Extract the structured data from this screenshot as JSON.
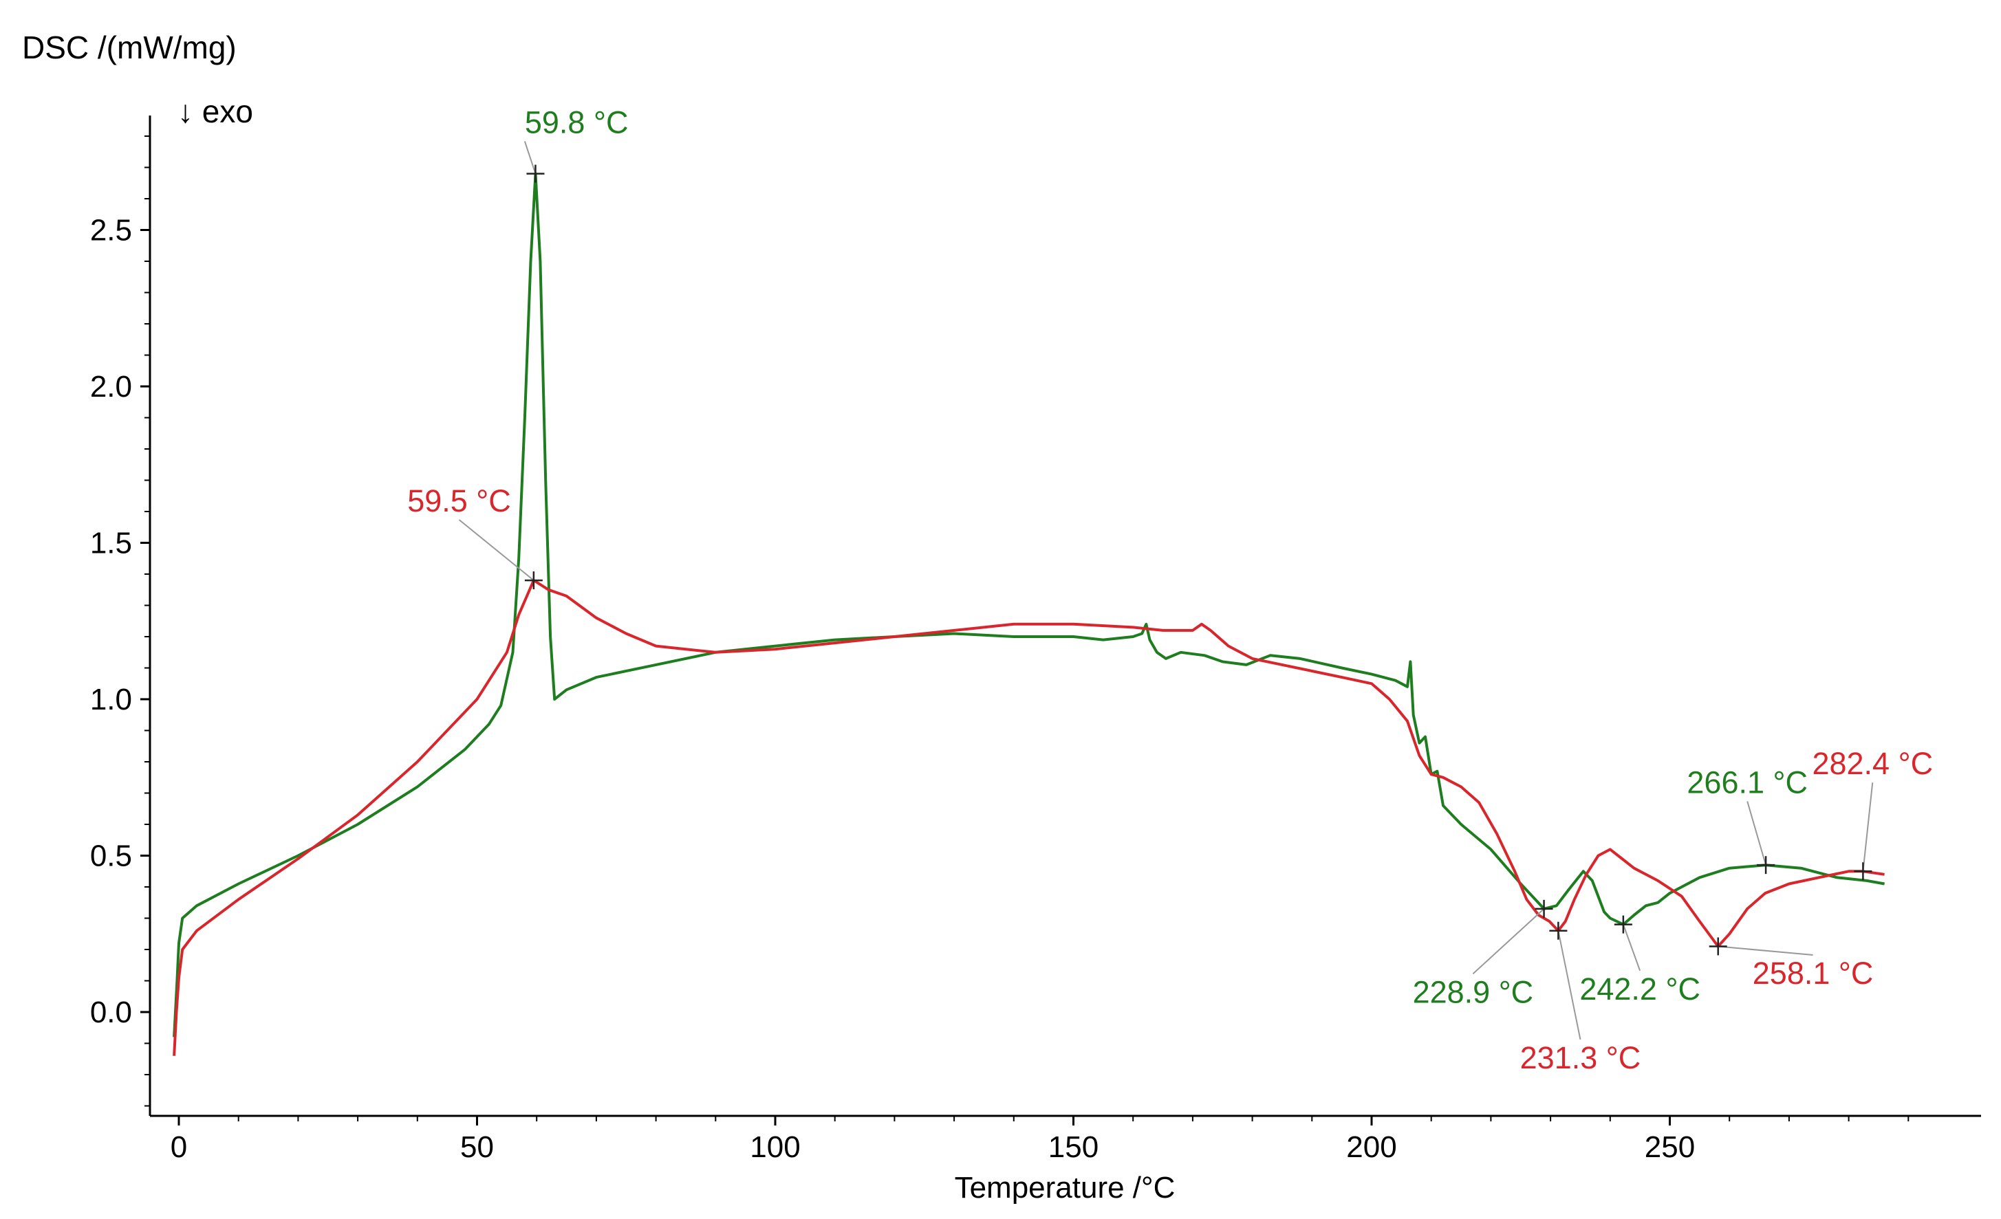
{
  "chart_data": {
    "type": "line",
    "title": "",
    "ylabel": "DSC /(mW/mg)",
    "exo_label": "↓ exo",
    "xlabel": "Temperature /°C",
    "xlim": [
      -2,
      300
    ],
    "ylim": [
      -0.32,
      2.88
    ],
    "x_ticks": [
      0,
      50,
      100,
      150,
      200,
      250
    ],
    "x_tick_labels": [
      "0",
      "50",
      "100",
      "150",
      "200",
      "250"
    ],
    "y_ticks": [
      0.0,
      0.5,
      1.0,
      1.5,
      2.0,
      2.5
    ],
    "y_tick_labels": [
      "0.0",
      "0.5",
      "1.0",
      "1.5",
      "2.0",
      "2.5"
    ],
    "colors": {
      "green": "#1e7d1e",
      "red": "#d9262c",
      "leader": "#999999"
    },
    "series": [
      {
        "name": "green",
        "color": "#1e7d1e",
        "points": [
          [
            -0.8,
            -0.08
          ],
          [
            -0.3,
            0.1
          ],
          [
            0,
            0.22
          ],
          [
            0.6,
            0.3
          ],
          [
            3,
            0.34
          ],
          [
            10,
            0.41
          ],
          [
            20,
            0.5
          ],
          [
            30,
            0.6
          ],
          [
            40,
            0.72
          ],
          [
            48,
            0.84
          ],
          [
            52,
            0.92
          ],
          [
            54,
            0.98
          ],
          [
            56,
            1.15
          ],
          [
            57,
            1.45
          ],
          [
            58,
            1.9
          ],
          [
            59,
            2.4
          ],
          [
            59.8,
            2.68
          ],
          [
            60.6,
            2.4
          ],
          [
            61.5,
            1.7
          ],
          [
            62.3,
            1.2
          ],
          [
            63,
            1.0
          ],
          [
            65,
            1.03
          ],
          [
            70,
            1.07
          ],
          [
            80,
            1.11
          ],
          [
            90,
            1.15
          ],
          [
            100,
            1.17
          ],
          [
            110,
            1.19
          ],
          [
            120,
            1.2
          ],
          [
            130,
            1.21
          ],
          [
            140,
            1.2
          ],
          [
            150,
            1.2
          ],
          [
            155,
            1.19
          ],
          [
            160,
            1.2
          ],
          [
            161.5,
            1.21
          ],
          [
            162.2,
            1.24
          ],
          [
            162.8,
            1.19
          ],
          [
            164,
            1.15
          ],
          [
            165.5,
            1.13
          ],
          [
            168,
            1.15
          ],
          [
            172,
            1.14
          ],
          [
            175,
            1.12
          ],
          [
            179,
            1.11
          ],
          [
            183,
            1.14
          ],
          [
            188,
            1.13
          ],
          [
            195,
            1.1
          ],
          [
            200,
            1.08
          ],
          [
            204,
            1.06
          ],
          [
            206,
            1.04
          ],
          [
            206.5,
            1.12
          ],
          [
            207,
            0.95
          ],
          [
            208,
            0.86
          ],
          [
            209,
            0.88
          ],
          [
            210,
            0.76
          ],
          [
            211,
            0.77
          ],
          [
            212,
            0.66
          ],
          [
            215,
            0.6
          ],
          [
            220,
            0.52
          ],
          [
            225,
            0.41
          ],
          [
            228.9,
            0.33
          ],
          [
            231,
            0.34
          ],
          [
            233,
            0.39
          ],
          [
            235.5,
            0.45
          ],
          [
            237,
            0.42
          ],
          [
            239,
            0.32
          ],
          [
            240,
            0.3
          ],
          [
            242.2,
            0.28
          ],
          [
            244,
            0.31
          ],
          [
            246,
            0.34
          ],
          [
            248,
            0.35
          ],
          [
            250,
            0.38
          ],
          [
            255,
            0.43
          ],
          [
            260,
            0.46
          ],
          [
            266.1,
            0.47
          ],
          [
            272,
            0.46
          ],
          [
            278,
            0.43
          ],
          [
            283,
            0.42
          ],
          [
            286,
            0.41
          ]
        ]
      },
      {
        "name": "red",
        "color": "#d9262c",
        "points": [
          [
            -0.8,
            -0.14
          ],
          [
            -0.4,
            0.0
          ],
          [
            0,
            0.11
          ],
          [
            0.6,
            0.2
          ],
          [
            3,
            0.26
          ],
          [
            10,
            0.36
          ],
          [
            20,
            0.49
          ],
          [
            30,
            0.63
          ],
          [
            40,
            0.8
          ],
          [
            50,
            1.0
          ],
          [
            55,
            1.15
          ],
          [
            57,
            1.27
          ],
          [
            59.5,
            1.38
          ],
          [
            62,
            1.35
          ],
          [
            65,
            1.33
          ],
          [
            70,
            1.26
          ],
          [
            75,
            1.21
          ],
          [
            80,
            1.17
          ],
          [
            90,
            1.15
          ],
          [
            100,
            1.16
          ],
          [
            110,
            1.18
          ],
          [
            120,
            1.2
          ],
          [
            130,
            1.22
          ],
          [
            140,
            1.24
          ],
          [
            150,
            1.24
          ],
          [
            160,
            1.23
          ],
          [
            165,
            1.22
          ],
          [
            170,
            1.22
          ],
          [
            171.5,
            1.24
          ],
          [
            173,
            1.22
          ],
          [
            176,
            1.17
          ],
          [
            180,
            1.13
          ],
          [
            185,
            1.11
          ],
          [
            190,
            1.09
          ],
          [
            195,
            1.07
          ],
          [
            200,
            1.05
          ],
          [
            203,
            1.0
          ],
          [
            206,
            0.93
          ],
          [
            208,
            0.82
          ],
          [
            210,
            0.76
          ],
          [
            212,
            0.75
          ],
          [
            215,
            0.72
          ],
          [
            218,
            0.67
          ],
          [
            221,
            0.57
          ],
          [
            224,
            0.45
          ],
          [
            226,
            0.36
          ],
          [
            228,
            0.31
          ],
          [
            229.8,
            0.29
          ],
          [
            231.3,
            0.26
          ],
          [
            232.5,
            0.29
          ],
          [
            234,
            0.36
          ],
          [
            236,
            0.44
          ],
          [
            238,
            0.5
          ],
          [
            240,
            0.52
          ],
          [
            242,
            0.49
          ],
          [
            244,
            0.46
          ],
          [
            248,
            0.42
          ],
          [
            252,
            0.37
          ],
          [
            255,
            0.29
          ],
          [
            258.1,
            0.21
          ],
          [
            260,
            0.25
          ],
          [
            263,
            0.33
          ],
          [
            266,
            0.38
          ],
          [
            270,
            0.41
          ],
          [
            275,
            0.43
          ],
          [
            280,
            0.45
          ],
          [
            282.4,
            0.45
          ],
          [
            286,
            0.44
          ]
        ]
      }
    ],
    "annotations": [
      {
        "series": "green",
        "label": "59.8 °C",
        "x": 59.8,
        "y": 2.68,
        "label_x": 58,
        "label_y": 2.81,
        "anchor": "start"
      },
      {
        "series": "red",
        "label": "59.5 °C",
        "x": 59.5,
        "y": 1.38,
        "label_x": 47,
        "label_y": 1.6,
        "anchor": "middle"
      },
      {
        "series": "green",
        "label": "228.9 °C",
        "x": 228.9,
        "y": 0.33,
        "label_x": 217,
        "label_y": 0.03,
        "anchor": "middle"
      },
      {
        "series": "red",
        "label": "231.3 °C",
        "x": 231.3,
        "y": 0.26,
        "label_x": 235,
        "label_y": -0.18,
        "anchor": "middle"
      },
      {
        "series": "green",
        "label": "242.2 °C",
        "x": 242.2,
        "y": 0.28,
        "label_x": 245,
        "label_y": 0.04,
        "anchor": "middle"
      },
      {
        "series": "red",
        "label": "258.1 °C",
        "x": 258.1,
        "y": 0.21,
        "label_x": 274,
        "label_y": 0.09,
        "anchor": "middle"
      },
      {
        "series": "green",
        "label": "266.1 °C",
        "x": 266.1,
        "y": 0.47,
        "label_x": 263,
        "label_y": 0.7,
        "anchor": "middle"
      },
      {
        "series": "red",
        "label": "282.4 °C",
        "x": 282.4,
        "y": 0.45,
        "label_x": 284,
        "label_y": 0.76,
        "anchor": "middle"
      }
    ]
  }
}
